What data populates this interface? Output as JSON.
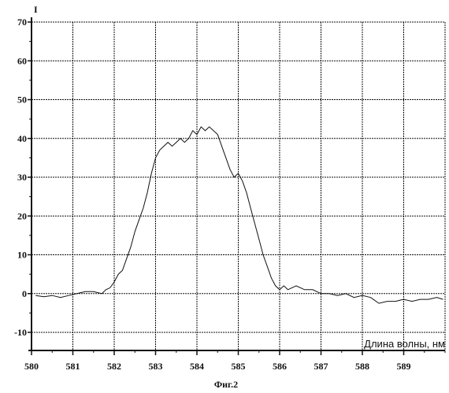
{
  "chart_data": {
    "type": "line",
    "ylabel": "I",
    "xlabel": "Длина волны, нм",
    "caption": "Фиг.2",
    "xlim": [
      580,
      590
    ],
    "ylim": [
      -10,
      70
    ],
    "xticks": [
      "580",
      "581",
      "582",
      "583",
      "584",
      "585",
      "586",
      "587",
      "588",
      "589"
    ],
    "yticks": [
      "70",
      "60",
      "50",
      "40",
      "30",
      "20",
      "10",
      "0",
      "-10"
    ],
    "grid": true,
    "series": [
      {
        "x": [
          580.1,
          580.3,
          580.5,
          580.7,
          580.9,
          581.1,
          581.3,
          581.5,
          581.7,
          581.8,
          581.9,
          582.0,
          582.1,
          582.2,
          582.3,
          582.4,
          582.5,
          582.6,
          582.7,
          582.8,
          582.9,
          583.0,
          583.1,
          583.2,
          583.3,
          583.4,
          583.5,
          583.6,
          583.7,
          583.8,
          583.9,
          584.0,
          584.1,
          584.2,
          584.3,
          584.4,
          584.5,
          584.6,
          584.7,
          584.8,
          584.9,
          585.0,
          585.1,
          585.2,
          585.3,
          585.4,
          585.5,
          585.6,
          585.7,
          585.8,
          585.9,
          586.0,
          586.1,
          586.2,
          586.4,
          586.6,
          586.8,
          587.0,
          587.2,
          587.4,
          587.6,
          587.8,
          588.0,
          588.2,
          588.4,
          588.6,
          588.8,
          589.0,
          589.2,
          589.4,
          589.6,
          589.8,
          589.95
        ],
        "y": [
          -0.5,
          -0.8,
          -0.5,
          -1.0,
          -0.5,
          0,
          0.5,
          0.5,
          0,
          1,
          1.5,
          3,
          5,
          6,
          9,
          12,
          16,
          19,
          22,
          26,
          31,
          35,
          37,
          38,
          39,
          38,
          39,
          40,
          39,
          40,
          42,
          41,
          43,
          42,
          43,
          42,
          41,
          38,
          35,
          32,
          30,
          31,
          29,
          26,
          22,
          18,
          14,
          10,
          7,
          4,
          2,
          1,
          2,
          1,
          2,
          1,
          1,
          0,
          0,
          -0.5,
          0,
          -1,
          -0.5,
          -1,
          -2.5,
          -2,
          -2,
          -1.5,
          -2,
          -1.5,
          -1.5,
          -1,
          -1.5
        ]
      }
    ]
  }
}
